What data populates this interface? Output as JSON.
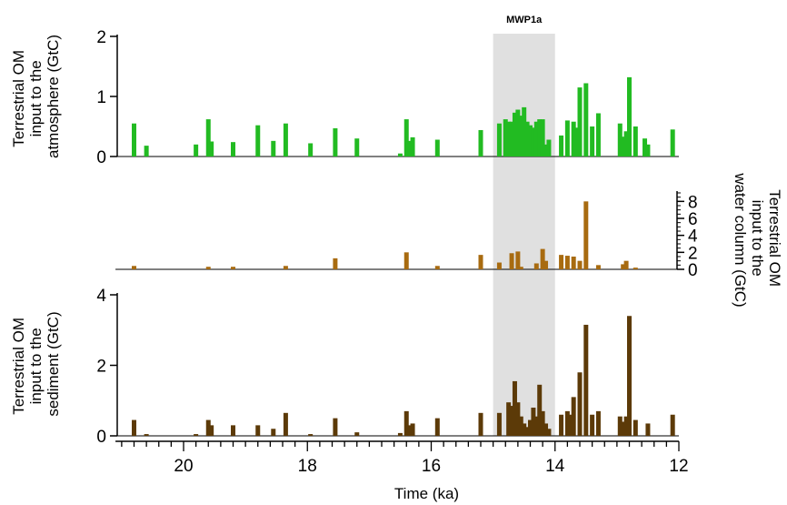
{
  "annotation": {
    "label": "MWP1a",
    "x_start": 15.0,
    "x_end": 14.0,
    "color": "#e0e0e0"
  },
  "x_axis": {
    "label": "Time (ka)",
    "range": [
      21.1,
      12.0
    ],
    "ticks": [
      "20",
      "18",
      "16",
      "14",
      "12"
    ],
    "tick_values": [
      20,
      18,
      16,
      14,
      12
    ],
    "minor_step": 0.2
  },
  "chart_data": [
    {
      "type": "bar",
      "panel": "atmosphere",
      "ylabel": "Terrestrial OM input to the atmosphere (GtC)",
      "ylabel_lines": [
        "Terrestrial OM",
        "input to the",
        "atmosphere (GtC)"
      ],
      "ylim": [
        0,
        2
      ],
      "yticks": [
        "0",
        "1",
        "2"
      ],
      "ytick_values": [
        0,
        1,
        2
      ],
      "axis_side": "left",
      "color": "#22bb22",
      "x": [
        20.8,
        20.6,
        19.8,
        19.6,
        19.55,
        19.2,
        18.8,
        18.55,
        18.35,
        17.95,
        17.55,
        17.2,
        16.5,
        16.4,
        16.35,
        16.3,
        15.9,
        15.2,
        14.9,
        14.8,
        14.75,
        14.7,
        14.65,
        14.6,
        14.55,
        14.5,
        14.45,
        14.4,
        14.35,
        14.3,
        14.25,
        14.2,
        14.15,
        14.1,
        13.9,
        13.8,
        13.7,
        13.65,
        13.6,
        13.5,
        13.4,
        13.3,
        12.95,
        12.9,
        12.85,
        12.8,
        12.7,
        12.55,
        12.5,
        12.1
      ],
      "values": [
        0.55,
        0.18,
        0.2,
        0.62,
        0.25,
        0.24,
        0.52,
        0.26,
        0.55,
        0.22,
        0.47,
        0.3,
        0.05,
        0.62,
        0.26,
        0.32,
        0.28,
        0.44,
        0.55,
        0.62,
        0.58,
        0.58,
        0.73,
        0.78,
        0.68,
        0.82,
        0.58,
        0.52,
        0.48,
        0.58,
        0.62,
        0.62,
        0.2,
        0.28,
        0.35,
        0.6,
        0.58,
        0.48,
        1.15,
        1.22,
        0.5,
        0.72,
        0.55,
        0.33,
        0.42,
        1.32,
        0.5,
        0.3,
        0.2,
        0.45
      ]
    },
    {
      "type": "bar",
      "panel": "water-column",
      "ylabel": "Terrestrial OM input to the water column (GtC)",
      "ylabel_lines": [
        "Terrestrial OM",
        "input to the",
        "water column (GtC)"
      ],
      "ylim": [
        0,
        9
      ],
      "yticks": [
        "0",
        "2",
        "4",
        "6",
        "8"
      ],
      "ytick_values": [
        0,
        2,
        4,
        6,
        8
      ],
      "axis_side": "right",
      "color": "#a86b10",
      "x": [
        20.8,
        19.6,
        19.2,
        18.35,
        17.55,
        16.4,
        15.9,
        15.2,
        14.9,
        14.7,
        14.6,
        14.55,
        14.3,
        14.2,
        14.15,
        13.9,
        13.8,
        13.7,
        13.6,
        13.5,
        13.3,
        12.9,
        12.85,
        12.7
      ],
      "values": [
        0.4,
        0.3,
        0.3,
        0.4,
        1.3,
        2.0,
        0.4,
        1.7,
        0.8,
        1.9,
        2.1,
        0.3,
        0.7,
        2.4,
        1.0,
        1.7,
        1.6,
        1.5,
        1.0,
        8.0,
        0.5,
        0.6,
        1.0,
        0.2
      ]
    },
    {
      "type": "bar",
      "panel": "sediment",
      "ylabel": "Terrestrial OM input to the sediment (GtC)",
      "ylabel_lines": [
        "Terrestrial OM",
        "input to the",
        "sediment (GtC)"
      ],
      "ylim": [
        0,
        4
      ],
      "yticks": [
        "0",
        "2",
        "4"
      ],
      "ytick_values": [
        0,
        2,
        4
      ],
      "axis_side": "left",
      "color": "#5c3a08",
      "x": [
        20.8,
        20.6,
        19.8,
        19.6,
        19.55,
        19.2,
        18.8,
        18.55,
        18.35,
        17.95,
        17.55,
        17.2,
        16.5,
        16.4,
        16.35,
        16.3,
        15.9,
        15.2,
        14.9,
        14.75,
        14.7,
        14.65,
        14.6,
        14.55,
        14.5,
        14.45,
        14.4,
        14.35,
        14.3,
        14.25,
        14.2,
        14.15,
        14.1,
        13.9,
        13.8,
        13.75,
        13.7,
        13.6,
        13.5,
        13.4,
        13.3,
        12.95,
        12.9,
        12.85,
        12.8,
        12.7,
        12.5,
        12.1
      ],
      "values": [
        0.45,
        0.05,
        0.05,
        0.45,
        0.3,
        0.3,
        0.3,
        0.2,
        0.65,
        0.05,
        0.5,
        0.1,
        0.08,
        0.7,
        0.3,
        0.35,
        0.5,
        0.65,
        0.65,
        0.95,
        0.85,
        1.55,
        0.95,
        0.55,
        0.35,
        0.25,
        0.45,
        0.8,
        0.55,
        1.45,
        0.7,
        0.35,
        0.2,
        0.6,
        0.7,
        0.6,
        1.1,
        1.8,
        3.15,
        0.6,
        0.7,
        0.55,
        0.4,
        0.55,
        3.4,
        0.45,
        0.35,
        0.6
      ]
    }
  ]
}
